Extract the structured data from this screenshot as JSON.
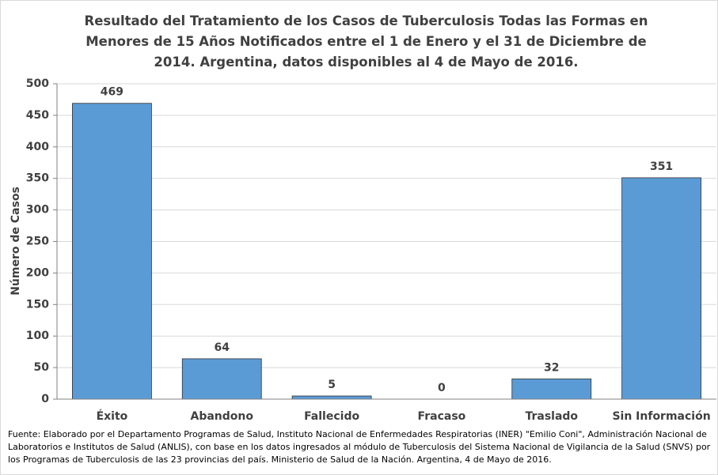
{
  "chart_data": {
    "type": "bar",
    "title": "Resultado del Tratamiento de los Casos de Tuberculosis Todas las Formas en Menores de 15 Años Notificados entre el 1 de Enero y el 31 de Diciembre de 2014. Argentina, datos disponibles al 4 de Mayo de 2016.",
    "y_label": "Número de Casos",
    "categories": [
      "Éxito",
      "Abandono",
      "Fallecido",
      "Fracaso",
      "Traslado",
      "Sin Información"
    ],
    "values": [
      469,
      64,
      5,
      0,
      32,
      351
    ],
    "color": "#5b9bd5",
    "ylim": [
      0,
      500
    ],
    "yticks": [
      0,
      50,
      100,
      150,
      200,
      250,
      300,
      350,
      400,
      450,
      500
    ],
    "grid": true,
    "source": "Fuente: Elaborado por el Departamento Programas de Salud, Instituto Nacional de Enfermedades Respiratorias (INER) \"Emilio Coni\", Administración Nacional de Laboratorios e Institutos de Salud (ANLIS), con base en los datos ingresados al módulo de Tuberculosis del Sistema Nacional de Vigilancia de la Salud (SNVS) por los Programas de Tuberculosis de las 23 provincias del país. Ministerio de Salud de la Nación. Argentina,  4 de Mayo de 2016."
  }
}
